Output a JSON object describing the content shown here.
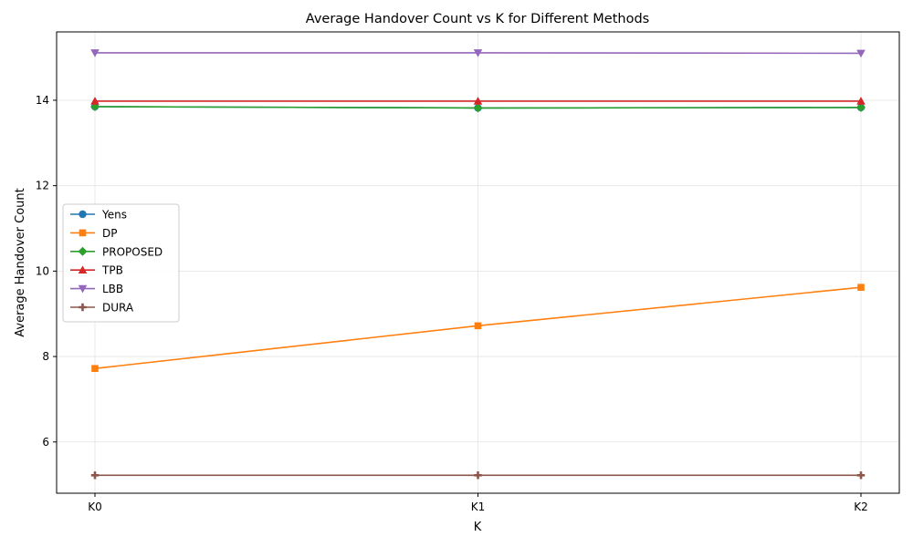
{
  "chart_data": {
    "type": "line",
    "title": "Average Handover Count vs K for Different Methods",
    "xlabel": "K",
    "ylabel": "Average Handover Count",
    "categories": [
      "K0",
      "K1",
      "K2"
    ],
    "ylim": [
      4.8,
      15.6
    ],
    "yticks": [
      6,
      8,
      10,
      12,
      14
    ],
    "grid": true,
    "legend_position": "center-left",
    "series": [
      {
        "name": "Yens",
        "values": [
          13.85,
          13.82,
          13.83
        ],
        "color": "#1f77b4",
        "marker": "circle"
      },
      {
        "name": "DP",
        "values": [
          7.72,
          8.72,
          9.62
        ],
        "color": "#ff7f0e",
        "marker": "square"
      },
      {
        "name": "PROPOSED",
        "values": [
          13.85,
          13.82,
          13.83
        ],
        "color": "#2ca02c",
        "marker": "diamond"
      },
      {
        "name": "TPB",
        "values": [
          13.98,
          13.98,
          13.98
        ],
        "color": "#d62728",
        "marker": "triangle-up"
      },
      {
        "name": "LBB",
        "values": [
          15.11,
          15.11,
          15.1
        ],
        "color": "#9467bd",
        "marker": "triangle-down"
      },
      {
        "name": "DURA",
        "values": [
          5.22,
          5.22,
          5.22
        ],
        "color": "#8c564b",
        "marker": "plus"
      }
    ]
  }
}
